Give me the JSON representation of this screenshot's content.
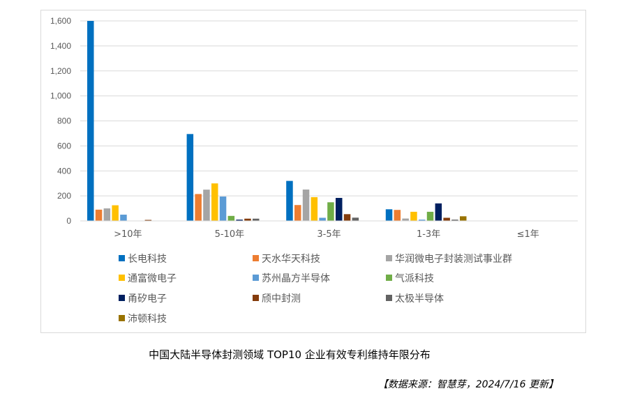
{
  "chart_data": {
    "type": "bar",
    "title": "",
    "xlabel": "",
    "ylabel": "",
    "ylim": [
      0,
      1600
    ],
    "yticks": [
      0,
      200,
      400,
      600,
      800,
      1000,
      1200,
      1400,
      1600
    ],
    "ytick_labels": [
      "0",
      "200",
      "400",
      "600",
      "800",
      "1,000",
      "1,200",
      "1,400",
      "1,600"
    ],
    "grid": true,
    "legend_position": "bottom",
    "categories": [
      ">10年",
      "5-10年",
      "3-5年",
      "1-3年",
      "≤1年"
    ],
    "series": [
      {
        "name": "长电科技",
        "color": "#0070C0",
        "values": [
          1600,
          695,
          320,
          93,
          0
        ]
      },
      {
        "name": "天水华天科技",
        "color": "#ED7D31",
        "values": [
          90,
          215,
          127,
          88,
          0
        ]
      },
      {
        "name": "华润微电子封装测试事业群",
        "color": "#A5A5A5",
        "values": [
          100,
          250,
          251,
          19,
          0
        ]
      },
      {
        "name": "通富微电子",
        "color": "#FFC000",
        "values": [
          125,
          300,
          190,
          73,
          0
        ]
      },
      {
        "name": "苏州晶方半导体",
        "color": "#5B9BD5",
        "values": [
          50,
          195,
          25,
          10,
          0
        ]
      },
      {
        "name": "气派科技",
        "color": "#70AD47",
        "values": [
          0,
          40,
          149,
          73,
          0
        ]
      },
      {
        "name": "甬矽电子",
        "color": "#002060",
        "values": [
          0,
          10,
          184,
          140,
          0
        ]
      },
      {
        "name": "颀中封测",
        "color": "#843C0C",
        "values": [
          8,
          18,
          54,
          25,
          0
        ]
      },
      {
        "name": "太极半导体",
        "color": "#636363",
        "values": [
          0,
          18,
          26,
          10,
          0
        ]
      },
      {
        "name": "沛顿科技",
        "color": "#997300",
        "values": [
          0,
          0,
          0,
          37,
          0
        ]
      }
    ]
  },
  "caption": "中国大陆半导体封测领域 TOP10 企业有效专利维持年限分布",
  "source": "【数据来源：智慧芽，2024/7/16 更新】"
}
